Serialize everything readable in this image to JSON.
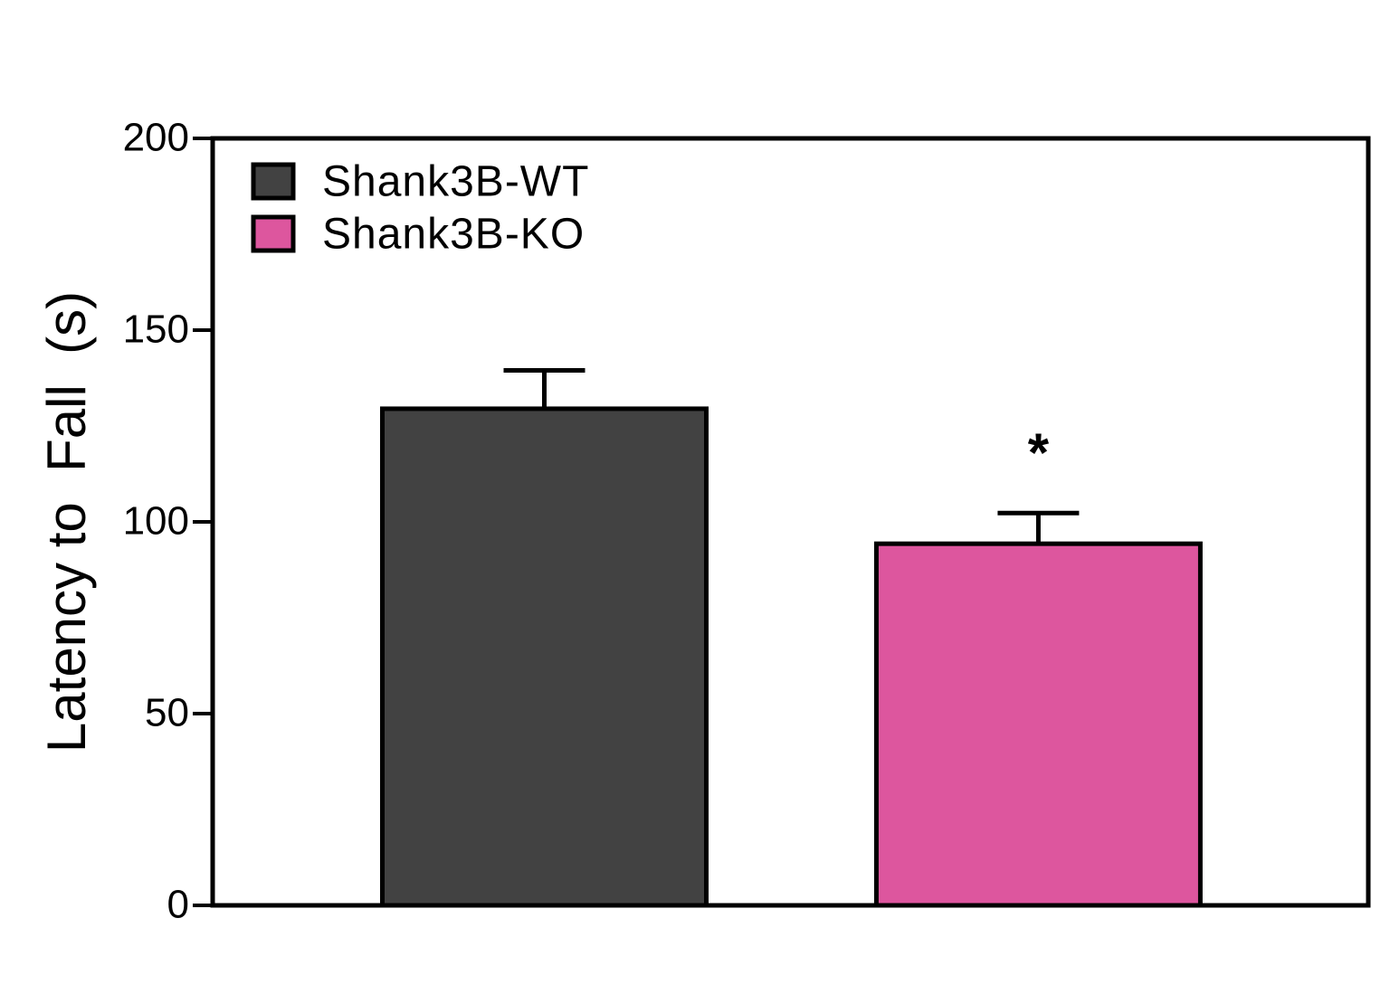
{
  "chart_data": {
    "type": "bar",
    "ylabel": "Latency to  Fall  (s)",
    "categories": [
      null
    ],
    "series": [
      {
        "name": "Shank3B-WT",
        "color": "#424242",
        "values": [
          129.5
        ],
        "errors": [
          10
        ]
      },
      {
        "name": "Shank3B-KO",
        "color": "#dd569e",
        "values": [
          94.3
        ],
        "errors": [
          8
        ],
        "annotation": "*"
      }
    ],
    "ylim": [
      0,
      200
    ],
    "yticks": [
      0,
      50,
      100,
      150,
      200
    ],
    "grid": false,
    "legend": "upper left"
  }
}
